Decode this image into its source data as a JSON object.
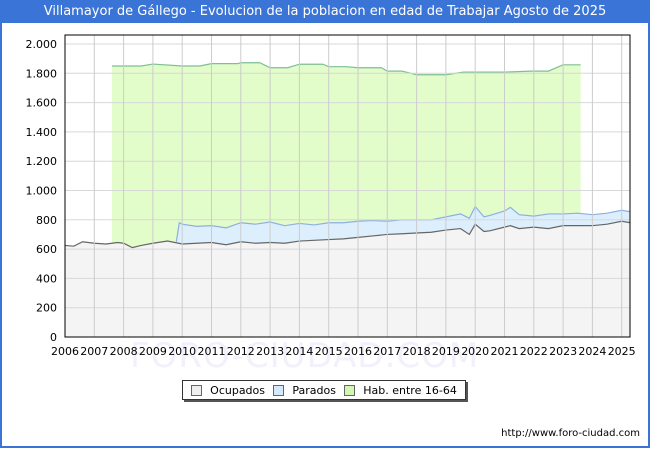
{
  "title": "Villamayor de Gállego - Evolucion de la poblacion en edad de Trabajar Agosto de 2025",
  "watermark": "FORO-CIUDAD.COM",
  "footer": "http://www.foro-ciudad.com",
  "colors": {
    "title_bg": "#3a74d6",
    "ocupados_fill": "#f4f4f4",
    "ocupados_line": "#666666",
    "parados_fill": "#ddeefc",
    "parados_line": "#8db0e0",
    "hab_fill": "#e2fcca",
    "hab_line": "#7fbf94"
  },
  "legend": {
    "items": [
      {
        "label": "Ocupados",
        "color": "#eeeeee"
      },
      {
        "label": "Parados",
        "color": "#d6e8fb"
      },
      {
        "label": "Hab. entre 16-64",
        "color": "#d4f7b0"
      }
    ]
  },
  "chart_data": {
    "type": "area",
    "title": "Villamayor de Gállego - Evolucion de la poblacion en edad de Trabajar Agosto de 2025",
    "xlabel": "",
    "ylabel": "",
    "ylim": [
      0,
      2000
    ],
    "xlim": [
      2006,
      2025.3
    ],
    "grid": true,
    "legend_position": "bottom",
    "y_ticks": [
      "0",
      "200",
      "400",
      "600",
      "800",
      "1.000",
      "1.200",
      "1.400",
      "1.600",
      "1.800",
      "2.000"
    ],
    "x_ticks": [
      "2006",
      "2007",
      "2008",
      "2009",
      "2010",
      "2011",
      "2012",
      "2013",
      "2014",
      "2015",
      "2016",
      "2017",
      "2018",
      "2019",
      "2020",
      "2021",
      "2022",
      "2023",
      "2024",
      "2025"
    ],
    "series": [
      {
        "name": "Hab. entre 16-64",
        "x": [
          2007.6,
          2008.0,
          2008.6,
          2009.0,
          2010.0,
          2010.6,
          2011.0,
          2011.9,
          2012.0,
          2012.65,
          2013.0,
          2013.6,
          2014.0,
          2014.8,
          2015.0,
          2015.6,
          2016.0,
          2016.8,
          2017.0,
          2017.5,
          2018.0,
          2019.0,
          2019.6,
          2020.0,
          2020.9,
          2021.0,
          2021.9,
          2022.0,
          2022.5,
          2023.0,
          2023.55,
          2023.6
        ],
        "values": [
          1850,
          1850,
          1850,
          1863,
          1850,
          1850,
          1866,
          1866,
          1872,
          1872,
          1838,
          1838,
          1862,
          1862,
          1845,
          1845,
          1838,
          1838,
          1815,
          1815,
          1790,
          1790,
          1808,
          1808,
          1808,
          1808,
          1815,
          1815,
          1815,
          1858,
          1858,
          1858
        ]
      },
      {
        "name": "Parados",
        "x": [
          2009.8,
          2009.9,
          2010.0,
          2010.5,
          2011.0,
          2011.5,
          2012.0,
          2012.5,
          2013.0,
          2013.5,
          2014.0,
          2014.5,
          2015.0,
          2015.5,
          2016.0,
          2016.5,
          2017.0,
          2017.5,
          2018.0,
          2018.5,
          2019.0,
          2019.5,
          2019.8,
          2020.0,
          2020.3,
          2020.5,
          2021.0,
          2021.2,
          2021.5,
          2022.0,
          2022.5,
          2023.0,
          2023.5,
          2024.0,
          2024.5,
          2025.0,
          2025.3
        ],
        "values": [
          650,
          780,
          770,
          755,
          760,
          745,
          780,
          770,
          785,
          760,
          775,
          765,
          780,
          780,
          790,
          795,
          790,
          800,
          800,
          800,
          820,
          840,
          810,
          890,
          820,
          830,
          860,
          885,
          835,
          825,
          840,
          840,
          845,
          835,
          845,
          865,
          855
        ]
      },
      {
        "name": "Ocupados",
        "x": [
          2006.0,
          2006.3,
          2006.6,
          2007.0,
          2007.4,
          2007.8,
          2008.0,
          2008.3,
          2008.6,
          2009.0,
          2009.5,
          2010.0,
          2010.5,
          2011.0,
          2011.5,
          2012.0,
          2012.5,
          2013.0,
          2013.5,
          2014.0,
          2014.5,
          2015.0,
          2015.5,
          2016.0,
          2016.5,
          2017.0,
          2017.5,
          2018.0,
          2018.5,
          2019.0,
          2019.5,
          2019.8,
          2020.0,
          2020.3,
          2020.5,
          2021.0,
          2021.2,
          2021.5,
          2022.0,
          2022.5,
          2023.0,
          2023.5,
          2024.0,
          2024.5,
          2025.0,
          2025.3
        ],
        "values": [
          625,
          620,
          650,
          640,
          635,
          645,
          640,
          610,
          625,
          640,
          655,
          635,
          640,
          645,
          630,
          650,
          640,
          645,
          640,
          655,
          660,
          665,
          670,
          680,
          690,
          700,
          705,
          710,
          715,
          730,
          740,
          700,
          770,
          720,
          725,
          750,
          760,
          740,
          750,
          740,
          760,
          760,
          760,
          770,
          790,
          780
        ]
      }
    ]
  }
}
